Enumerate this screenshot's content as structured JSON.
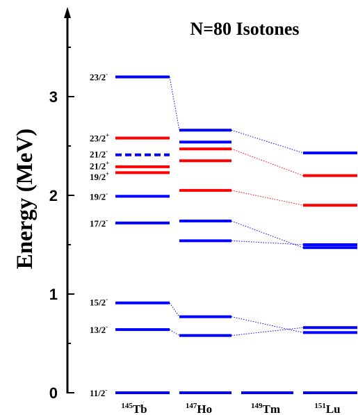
{
  "chart_data": {
    "type": "level-scheme",
    "title": "N=80 Isotones",
    "ylabel": "Energy (MeV)",
    "ylim": [
      0,
      3.65
    ],
    "yticks": [
      "0",
      "1",
      "2",
      "3"
    ],
    "columns": [
      {
        "mass": "145",
        "element": "Tb"
      },
      {
        "mass": "147",
        "element": "Ho"
      },
      {
        "mass": "149",
        "element": "Tm"
      },
      {
        "mass": "151",
        "element": "Lu"
      }
    ],
    "colors": {
      "negative_parity": "#0000ff",
      "positive_parity": "#ff0000",
      "axis": "#000000"
    },
    "spin_labels": [
      {
        "num": "23/2",
        "parity": "-",
        "energy": 3.2
      },
      {
        "num": "23/2",
        "parity": "+",
        "energy": 2.58
      },
      {
        "num": "21/2",
        "parity": "-",
        "energy": 2.42
      },
      {
        "num": "21/2",
        "parity": "+",
        "energy": 2.3
      },
      {
        "num": "19/2",
        "parity": "+",
        "energy": 2.19
      },
      {
        "num": "19/2",
        "parity": "-",
        "energy": 1.99
      },
      {
        "num": "17/2",
        "parity": "-",
        "energy": 1.72
      },
      {
        "num": "15/2",
        "parity": "-",
        "energy": 0.92
      },
      {
        "num": "13/2",
        "parity": "-",
        "energy": 0.64
      },
      {
        "num": "11/2",
        "parity": "-",
        "energy": 0.0
      }
    ],
    "levels": {
      "Tb": [
        {
          "spin": "23/2-",
          "energy": 3.2,
          "parity": "-"
        },
        {
          "spin": "23/2+",
          "energy": 2.58,
          "parity": "+"
        },
        {
          "spin": "21/2-",
          "energy": 2.41,
          "parity": "-",
          "dashed": true
        },
        {
          "spin": "21/2+",
          "energy": 2.29,
          "parity": "+"
        },
        {
          "spin": "19/2+",
          "energy": 2.23,
          "parity": "+"
        },
        {
          "spin": "19/2-",
          "energy": 1.99,
          "parity": "-"
        },
        {
          "spin": "17/2-",
          "energy": 1.72,
          "parity": "-"
        },
        {
          "spin": "15/2-",
          "energy": 0.91,
          "parity": "-"
        },
        {
          "spin": "13/2-",
          "energy": 0.64,
          "parity": "-"
        },
        {
          "spin": "11/2-",
          "energy": 0.0,
          "parity": "-"
        }
      ],
      "Ho": [
        {
          "spin": "23/2-",
          "energy": 2.66,
          "parity": "-"
        },
        {
          "spin": "21/2-",
          "energy": 2.54,
          "parity": "-"
        },
        {
          "spin": "23/2+",
          "energy": 2.47,
          "parity": "+"
        },
        {
          "spin": "21/2+",
          "energy": 2.35,
          "parity": "+"
        },
        {
          "spin": "19/2+",
          "energy": 2.05,
          "parity": "+"
        },
        {
          "spin": "19/2-",
          "energy": 1.74,
          "parity": "-"
        },
        {
          "spin": "17/2-",
          "energy": 1.54,
          "parity": "-"
        },
        {
          "spin": "15/2-",
          "energy": 0.77,
          "parity": "-"
        },
        {
          "spin": "13/2-",
          "energy": 0.58,
          "parity": "-"
        },
        {
          "spin": "11/2-",
          "energy": 0.0,
          "parity": "-"
        }
      ],
      "Tm": [
        {
          "spin": "11/2-",
          "energy": 0.0,
          "parity": "-"
        }
      ],
      "Lu": [
        {
          "spin": "23/2-",
          "energy": 2.43,
          "parity": "-"
        },
        {
          "spin": "23/2+",
          "energy": 2.2,
          "parity": "+"
        },
        {
          "spin": "19/2+",
          "energy": 1.9,
          "parity": "+"
        },
        {
          "spin": "19/2-",
          "energy": 1.5,
          "parity": "-"
        },
        {
          "spin": "17/2-",
          "energy": 1.47,
          "parity": "-"
        },
        {
          "spin": "15/2-",
          "energy": 0.66,
          "parity": "-"
        },
        {
          "spin": "13/2-",
          "energy": 0.61,
          "parity": "-"
        },
        {
          "spin": "11/2-",
          "energy": 0.0,
          "parity": "-"
        }
      ]
    },
    "connections": [
      {
        "from": [
          "Tb",
          "23/2-"
        ],
        "to": [
          "Ho",
          "23/2-"
        ]
      },
      {
        "from": [
          "Ho",
          "23/2-"
        ],
        "to": [
          "Lu",
          "23/2-"
        ]
      },
      {
        "from": [
          "Ho",
          "23/2+"
        ],
        "to": [
          "Lu",
          "23/2+"
        ]
      },
      {
        "from": [
          "Ho",
          "19/2+"
        ],
        "to": [
          "Lu",
          "19/2+"
        ]
      },
      {
        "from": [
          "Ho",
          "19/2-"
        ],
        "to": [
          "Lu",
          "17/2-"
        ]
      },
      {
        "from": [
          "Ho",
          "17/2-"
        ],
        "to": [
          "Lu",
          "19/2-"
        ]
      },
      {
        "from": [
          "Tb",
          "15/2-"
        ],
        "to": [
          "Ho",
          "15/2-"
        ]
      },
      {
        "from": [
          "Tb",
          "13/2-"
        ],
        "to": [
          "Ho",
          "13/2-"
        ]
      },
      {
        "from": [
          "Ho",
          "15/2-"
        ],
        "to": [
          "Lu",
          "13/2-"
        ]
      },
      {
        "from": [
          "Ho",
          "13/2-"
        ],
        "to": [
          "Lu",
          "15/2-"
        ]
      }
    ]
  }
}
